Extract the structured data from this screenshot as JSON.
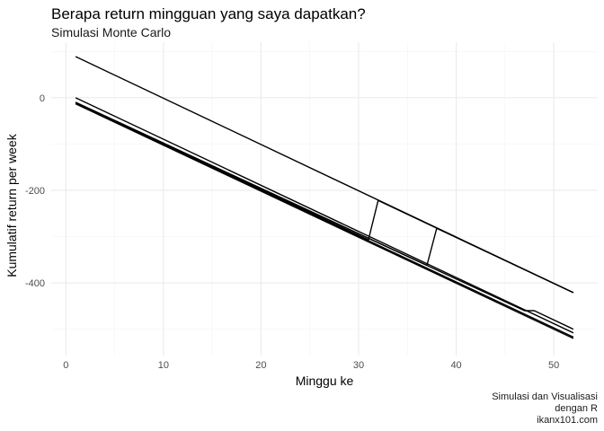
{
  "chart_data": {
    "type": "line",
    "title": "Berapa return mingguan yang saya dapatkan?",
    "subtitle": "Simulasi Monte Carlo",
    "xlabel": "Minggu ke",
    "ylabel": "Kumulatif return per week",
    "xlim": [
      -1.5,
      54.5
    ],
    "ylim": [
      -557,
      120
    ],
    "x_ticks": [
      0,
      10,
      20,
      30,
      40,
      50
    ],
    "y_ticks": [
      0,
      -200,
      -400
    ],
    "x_tick_labels": [
      "0",
      "10",
      "20",
      "30",
      "40",
      "50"
    ],
    "y_tick_labels": [
      "0",
      "-200",
      "-400"
    ],
    "grid": true,
    "legend": "none",
    "line_color": "#000000",
    "caption": [
      "Simulasi dan Visualisasi",
      "dengan R",
      "ikanx101.com"
    ],
    "series": [
      {
        "x": [
          1,
          52
        ],
        "y": [
          89,
          -421
        ]
      },
      {
        "x": [
          1,
          31,
          32,
          52
        ],
        "y": [
          -10,
          -307,
          -222,
          -421
        ]
      },
      {
        "x": [
          1,
          37,
          38,
          52
        ],
        "y": [
          -10,
          -362,
          -282,
          -421
        ]
      },
      {
        "x": [
          1,
          2,
          52
        ],
        "y": [
          0,
          -10,
          -508
        ]
      },
      {
        "x": [
          1,
          47,
          48,
          52
        ],
        "y": [
          -10,
          -460,
          -460,
          -500
        ]
      },
      {
        "x": [
          1,
          52
        ],
        "y": [
          -11,
          -517
        ]
      },
      {
        "x": [
          1,
          52
        ],
        "y": [
          -13,
          -520
        ]
      }
    ]
  }
}
